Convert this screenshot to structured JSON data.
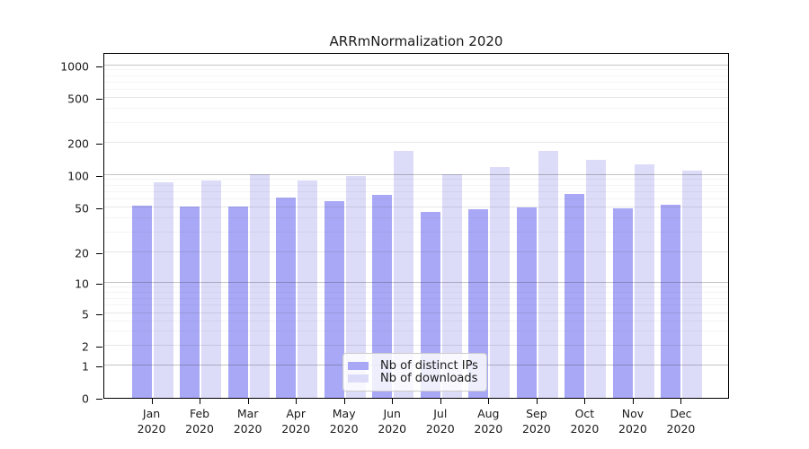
{
  "title": "ARRmNormalization 2020",
  "chart_data": {
    "type": "bar",
    "title": "ARRmNormalization 2020",
    "categories": [
      "Jan 2020",
      "Feb 2020",
      "Mar 2020",
      "Apr 2020",
      "May 2020",
      "Jun 2020",
      "Jul 2020",
      "Aug 2020",
      "Sep 2020",
      "Oct 2020",
      "Nov 2020",
      "Dec 2020"
    ],
    "x_tick_line1": [
      "Jan",
      "Feb",
      "Mar",
      "Apr",
      "May",
      "Jun",
      "Jul",
      "Aug",
      "Sep",
      "Oct",
      "Nov",
      "Dec"
    ],
    "x_tick_line2": [
      "2020",
      "2020",
      "2020",
      "2020",
      "2020",
      "2020",
      "2020",
      "2020",
      "2020",
      "2020",
      "2020",
      "2020"
    ],
    "series": [
      {
        "name": "Nb of distinct IPs",
        "color": "#a8a8f6",
        "values": [
          52,
          51,
          51,
          62,
          57,
          65,
          46,
          48,
          50,
          67,
          49,
          53
        ]
      },
      {
        "name": "Nb of downloads",
        "color": "#dcdcf8",
        "values": [
          85,
          89,
          102,
          90,
          99,
          168,
          103,
          119,
          168,
          138,
          127,
          111
        ]
      }
    ],
    "yscale": "symlog",
    "yticks": [
      0,
      1,
      2,
      5,
      10,
      20,
      50,
      100,
      200,
      500,
      1000
    ],
    "ylim": [
      0,
      1000
    ],
    "grid": true,
    "legend_position": "inside lower center"
  },
  "legend": {
    "items": [
      {
        "label": "Nb of distinct IPs",
        "color": "#a8a8f6"
      },
      {
        "label": "Nb of downloads",
        "color": "#dcdcf8"
      }
    ]
  }
}
